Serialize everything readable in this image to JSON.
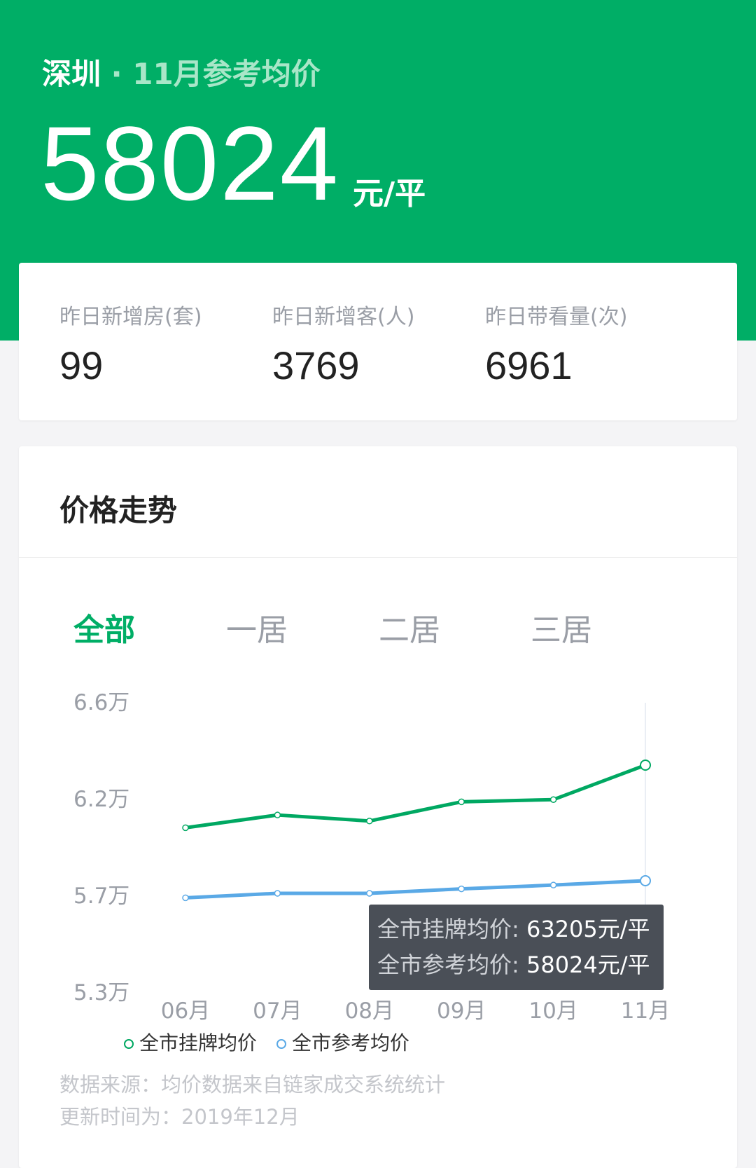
{
  "header": {
    "city": "深圳",
    "separator": "·",
    "subtitle": "11月参考均价",
    "price": "58024",
    "unit": "元/平"
  },
  "stats": [
    {
      "label": "昨日新增房(套)",
      "value": "99"
    },
    {
      "label": "昨日新增客(人)",
      "value": "3769"
    },
    {
      "label": "昨日带看量(次)",
      "value": "6961"
    }
  ],
  "trend": {
    "title": "价格走势",
    "tabs": [
      {
        "label": "全部",
        "active": true
      },
      {
        "label": "一居"
      },
      {
        "label": "二居"
      },
      {
        "label": "三居"
      }
    ],
    "tooltip": {
      "line1_key": "全市挂牌均价:",
      "line1_val": "63205元/平",
      "line2_key": "全市参考均价:",
      "line2_val": "58024元/平"
    },
    "source": "数据来源：均价数据来自链家成交系统统计",
    "updated": "更新时间为：2019年12月"
  },
  "colors": {
    "brand": "#00ae66",
    "listing": "#00a862",
    "reference": "#5aa9e6"
  },
  "chart_data": {
    "type": "line",
    "categories": [
      "06月",
      "07月",
      "08月",
      "09月",
      "10月",
      "11月"
    ],
    "yticks": [
      "5.3万",
      "5.7万",
      "6.2万",
      "6.6万"
    ],
    "ylim": [
      53000,
      66000
    ],
    "grid": false,
    "legend": "bottom",
    "series": [
      {
        "name": "全市挂牌均价",
        "values": [
          60400,
          60970,
          60700,
          61560,
          61660,
          63205
        ]
      },
      {
        "name": "全市参考均价",
        "values": [
          57260,
          57460,
          57460,
          57660,
          57830,
          58024
        ]
      }
    ]
  }
}
